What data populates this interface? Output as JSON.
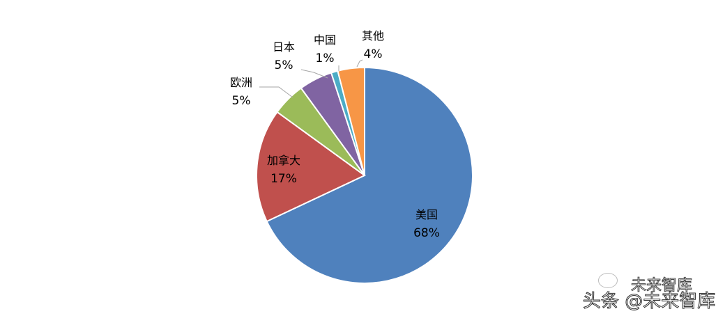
{
  "chart_data": {
    "type": "pie",
    "start_angle": "12 o'clock, clockwise",
    "slices": [
      {
        "label": "美国",
        "value": 68,
        "value_label": "68%",
        "color": "#4F81BD"
      },
      {
        "label": "加拿大",
        "value": 17,
        "value_label": "17%",
        "color": "#C0504D"
      },
      {
        "label": "欧洲",
        "value": 5,
        "value_label": "5%",
        "color": "#9BBB59"
      },
      {
        "label": "日本",
        "value": 5,
        "value_label": "5%",
        "color": "#8064A2"
      },
      {
        "label": "中国",
        "value": 1,
        "value_label": "1%",
        "color": "#4BACC6"
      },
      {
        "label": "其他",
        "value": 4,
        "value_label": "4%",
        "color": "#F79646"
      }
    ]
  },
  "watermark": {
    "line1": "未来智库",
    "line2": "头条 @未来智库"
  }
}
